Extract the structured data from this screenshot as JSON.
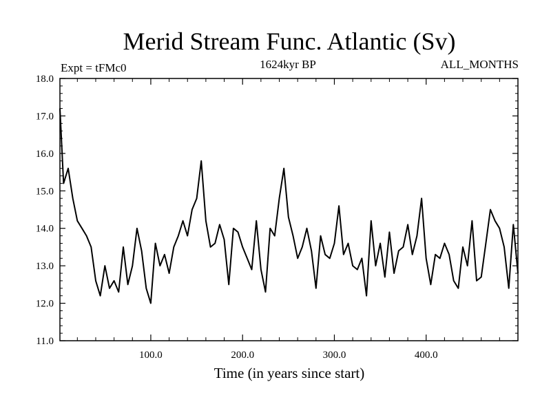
{
  "chart_data": {
    "type": "line",
    "title": "Merid Stream Func. Atlantic (Sv)",
    "subtitle_left": "Expt = tFMc0",
    "subtitle_center": "1624kyr BP",
    "subtitle_right": "ALL_MONTHS",
    "xlabel": "Time (in years since start)",
    "ylabel": "",
    "xlim": [
      1,
      500
    ],
    "ylim": [
      11.0,
      18.0
    ],
    "xticks": [
      100,
      200,
      300,
      400
    ],
    "xtick_labels": [
      "100.0",
      "200.0",
      "300.0",
      "400.0"
    ],
    "yticks": [
      11,
      12,
      13,
      14,
      15,
      16,
      17,
      18
    ],
    "ytick_labels": [
      "11.0",
      "12.0",
      "13.0",
      "14.0",
      "15.0",
      "16.0",
      "17.0",
      "18.0"
    ],
    "series": [
      {
        "name": "Merid Stream Func. Atlantic",
        "color": "#000000",
        "x": [
          1,
          5,
          10,
          15,
          20,
          25,
          30,
          35,
          40,
          45,
          50,
          55,
          60,
          65,
          70,
          75,
          80,
          85,
          90,
          95,
          100,
          105,
          110,
          115,
          120,
          125,
          130,
          135,
          140,
          145,
          150,
          155,
          160,
          165,
          170,
          175,
          180,
          185,
          190,
          195,
          200,
          205,
          210,
          215,
          220,
          225,
          230,
          235,
          240,
          245,
          250,
          255,
          260,
          265,
          270,
          275,
          280,
          285,
          290,
          295,
          300,
          305,
          310,
          315,
          320,
          325,
          330,
          335,
          340,
          345,
          350,
          355,
          360,
          365,
          370,
          375,
          380,
          385,
          390,
          395,
          400,
          405,
          410,
          415,
          420,
          425,
          430,
          435,
          440,
          445,
          450,
          455,
          460,
          465,
          470,
          475,
          480,
          485,
          490,
          495,
          500
        ],
        "values": [
          17.2,
          15.2,
          15.6,
          14.8,
          14.2,
          14.0,
          13.8,
          13.5,
          12.6,
          12.2,
          13.0,
          12.4,
          12.6,
          12.3,
          13.5,
          12.5,
          13.0,
          14.0,
          13.4,
          12.4,
          12.0,
          13.6,
          13.0,
          13.3,
          12.8,
          13.5,
          13.8,
          14.2,
          13.8,
          14.5,
          14.8,
          15.8,
          14.2,
          13.5,
          13.6,
          14.1,
          13.7,
          12.5,
          14.0,
          13.9,
          13.5,
          13.2,
          12.9,
          14.2,
          12.9,
          12.3,
          14.0,
          13.8,
          14.8,
          15.6,
          14.3,
          13.8,
          13.2,
          13.5,
          14.0,
          13.4,
          12.4,
          13.8,
          13.3,
          13.2,
          13.6,
          14.6,
          13.3,
          13.6,
          13.0,
          12.9,
          13.2,
          12.2,
          14.2,
          13.0,
          13.6,
          12.7,
          13.9,
          12.8,
          13.4,
          13.5,
          14.1,
          13.3,
          13.8,
          14.8,
          13.2,
          12.5,
          13.3,
          13.2,
          13.6,
          13.3,
          12.6,
          12.4,
          13.5,
          13.0,
          14.2,
          12.6,
          12.7,
          13.6,
          14.5,
          14.2,
          14.0,
          13.5,
          12.4,
          14.1,
          12.8
        ]
      }
    ]
  }
}
